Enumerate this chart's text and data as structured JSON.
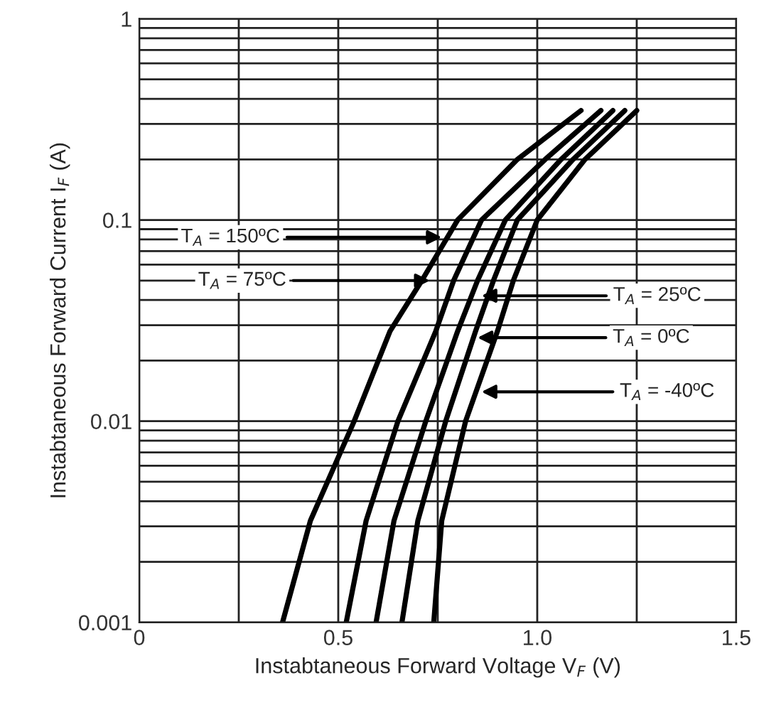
{
  "chart_data": {
    "type": "line",
    "xlabel": "Instabtaneous Forward Voltage V$_{F}$ (V)",
    "ylabel": "Instabtaneous Forward Current I$_{F}$ (A)",
    "log": "y",
    "grid": true,
    "line_style": "solid",
    "marker": "none",
    "xlim": [
      0,
      1.5
    ],
    "ylim": [
      0.001,
      1
    ],
    "xticks": [
      0,
      {
        "value": 0.25,
        "label": null
      },
      {
        "value": 0.5,
        "label": "0.5"
      },
      {
        "value": 0.75,
        "label": null
      },
      {
        "value": 1.0,
        "label": "1.0"
      },
      {
        "value": 1.25,
        "label": null
      },
      {
        "value": 1.5,
        "label": "1.5"
      }
    ],
    "yticks": [
      {
        "value": 0.001,
        "label": "0.001"
      },
      {
        "value": 0.002,
        "label": null
      },
      {
        "value": 0.003,
        "label": null
      },
      {
        "value": 0.004,
        "label": null
      },
      {
        "value": 0.005,
        "label": null
      },
      {
        "value": 0.006,
        "label": null
      },
      {
        "value": 0.007,
        "label": null
      },
      {
        "value": 0.008,
        "label": null
      },
      {
        "value": 0.009,
        "label": null
      },
      {
        "value": 0.01,
        "label": "0.01"
      },
      {
        "value": 0.02,
        "label": null
      },
      {
        "value": 0.03,
        "label": null
      },
      {
        "value": 0.04,
        "label": null
      },
      {
        "value": 0.05,
        "label": null
      },
      {
        "value": 0.06,
        "label": null
      },
      {
        "value": 0.07,
        "label": null
      },
      {
        "value": 0.08,
        "label": null
      },
      {
        "value": 0.09,
        "label": null
      },
      {
        "value": 0.1,
        "label": "0.1"
      },
      {
        "value": 0.2,
        "label": null
      },
      {
        "value": 0.3,
        "label": null
      },
      {
        "value": 0.4,
        "label": null
      },
      {
        "value": 0.5,
        "label": null
      },
      {
        "value": 0.6,
        "label": null
      },
      {
        "value": 0.7,
        "label": null
      },
      {
        "value": 0.8,
        "label": null
      },
      {
        "value": 0.9,
        "label": null
      },
      {
        "value": 1,
        "label": "1"
      }
    ],
    "series": [
      {
        "color": "#000000",
        "x": [
          0.36,
          0.43,
          0.54,
          0.63,
          0.71,
          0.8,
          0.95,
          1.11
        ],
        "values": [
          0.001,
          0.0032,
          0.01,
          0.028,
          0.05,
          0.1,
          0.2,
          0.35
        ]
      },
      {
        "color": "#000000",
        "x": [
          0.52,
          0.57,
          0.65,
          0.745,
          0.79,
          0.86,
          1.02,
          1.16
        ],
        "values": [
          0.001,
          0.0032,
          0.01,
          0.028,
          0.05,
          0.1,
          0.2,
          0.35
        ]
      },
      {
        "color": "#000000",
        "x": [
          0.595,
          0.64,
          0.72,
          0.8,
          0.85,
          0.92,
          1.06,
          1.19
        ],
        "values": [
          0.001,
          0.0032,
          0.01,
          0.028,
          0.05,
          0.1,
          0.2,
          0.35
        ]
      },
      {
        "color": "#000000",
        "x": [
          0.66,
          0.7,
          0.77,
          0.845,
          0.89,
          0.95,
          1.09,
          1.22
        ],
        "values": [
          0.001,
          0.0032,
          0.01,
          0.028,
          0.05,
          0.1,
          0.2,
          0.35
        ]
      },
      {
        "color": "#000000",
        "x": [
          0.74,
          0.76,
          0.82,
          0.9,
          0.94,
          1.0,
          1.12,
          1.25
        ],
        "values": [
          0.001,
          0.0032,
          0.01,
          0.028,
          0.05,
          0.1,
          0.2,
          0.35
        ]
      }
    ],
    "annotations": [
      {
        "text": "T$_{A}$ = 150ºC",
        "x": 0.76,
        "y": 0.082
      },
      {
        "text": "T$_{A}$ = 75ºC",
        "x": 0.73,
        "y": 0.05
      },
      {
        "text": "T$_{A}$ = 25ºC",
        "x": 0.86,
        "y": 0.042
      },
      {
        "text": "T$_{A}$ = 0ºC",
        "x": 0.85,
        "y": 0.026
      },
      {
        "text": "T$_{A}$ = -40ºC",
        "x": 0.86,
        "y": 0.014
      }
    ]
  }
}
